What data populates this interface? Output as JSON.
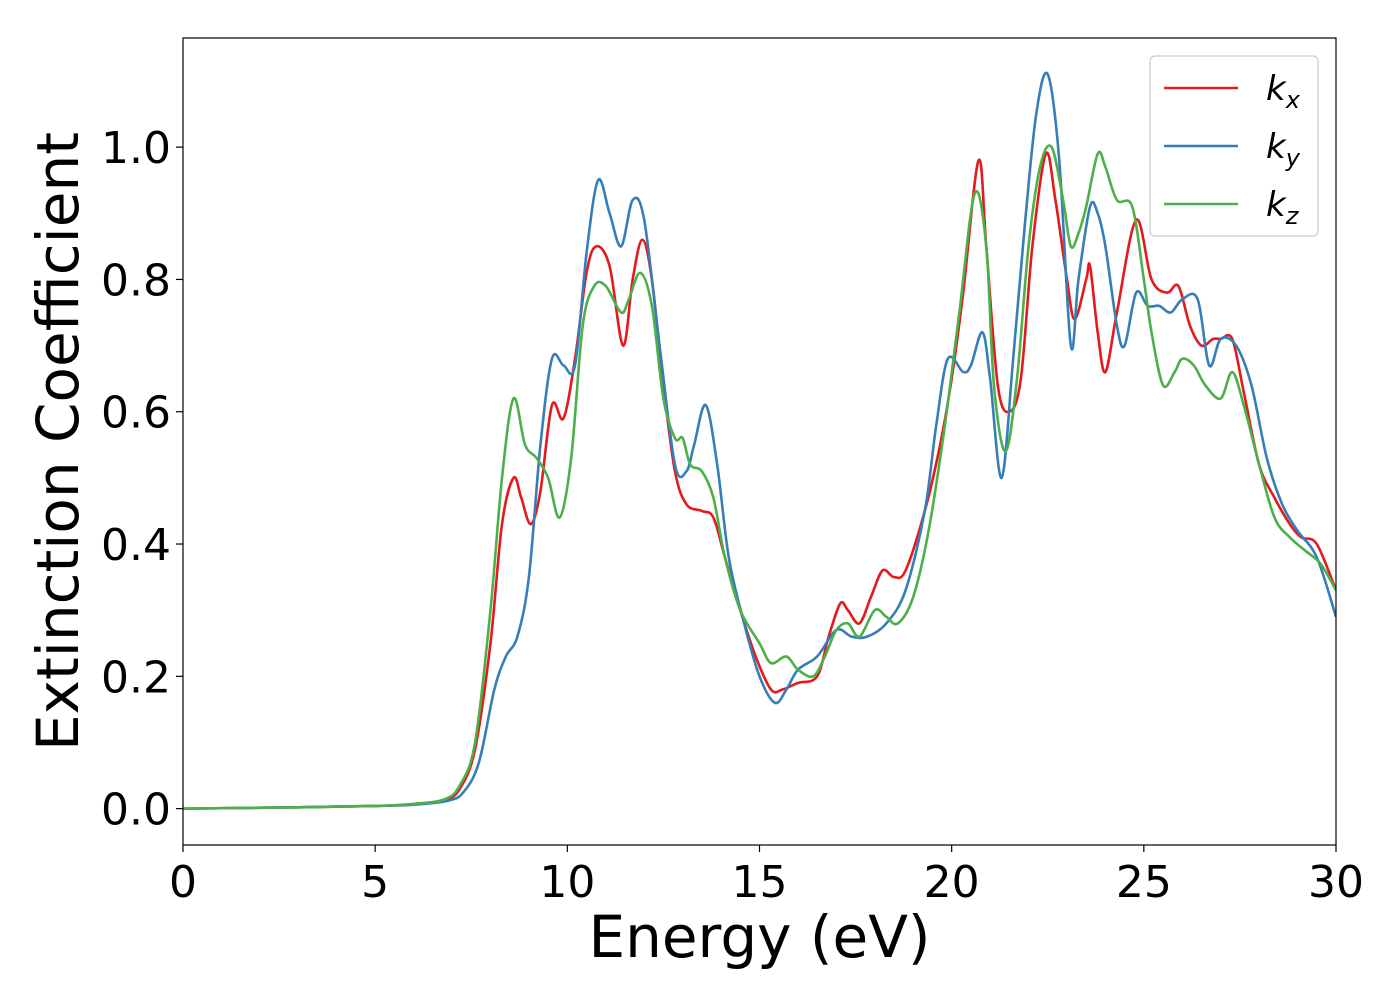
{
  "chart_data": {
    "type": "line",
    "xlabel": "Energy (eV)",
    "ylabel": "Extinction Coefficient",
    "xlim": [
      0,
      30
    ],
    "ylim": [
      -0.055,
      1.165
    ],
    "xticks": [
      0,
      5,
      10,
      15,
      20,
      25,
      30
    ],
    "xtick_labels": [
      "0",
      "5",
      "10",
      "15",
      "20",
      "25",
      "30"
    ],
    "yticks": [
      0.0,
      0.2,
      0.4,
      0.6,
      0.8,
      1.0
    ],
    "ytick_labels": [
      "0.0",
      "0.2",
      "0.4",
      "0.6",
      "0.8",
      "1.0"
    ],
    "grid": false,
    "legend_position": "top-right",
    "series": [
      {
        "label_base": "k",
        "label_sub": "x",
        "color": "#e41a1c",
        "points": [
          [
            0,
            0.0
          ],
          [
            3,
            0.002
          ],
          [
            5,
            0.004
          ],
          [
            6,
            0.007
          ],
          [
            6.8,
            0.013
          ],
          [
            7.2,
            0.03
          ],
          [
            7.6,
            0.09
          ],
          [
            8.0,
            0.25
          ],
          [
            8.3,
            0.43
          ],
          [
            8.6,
            0.5
          ],
          [
            8.8,
            0.47
          ],
          [
            9.05,
            0.43
          ],
          [
            9.3,
            0.48
          ],
          [
            9.6,
            0.61
          ],
          [
            9.9,
            0.59
          ],
          [
            10.2,
            0.68
          ],
          [
            10.5,
            0.81
          ],
          [
            10.75,
            0.85
          ],
          [
            11.1,
            0.82
          ],
          [
            11.45,
            0.7
          ],
          [
            11.7,
            0.8
          ],
          [
            11.95,
            0.86
          ],
          [
            12.2,
            0.8
          ],
          [
            12.5,
            0.64
          ],
          [
            12.8,
            0.51
          ],
          [
            13.1,
            0.46
          ],
          [
            13.5,
            0.45
          ],
          [
            13.8,
            0.44
          ],
          [
            14.1,
            0.38
          ],
          [
            14.5,
            0.3
          ],
          [
            14.9,
            0.23
          ],
          [
            15.3,
            0.18
          ],
          [
            15.6,
            0.18
          ],
          [
            16.0,
            0.19
          ],
          [
            16.5,
            0.2
          ],
          [
            16.8,
            0.26
          ],
          [
            17.1,
            0.31
          ],
          [
            17.3,
            0.3
          ],
          [
            17.6,
            0.28
          ],
          [
            17.9,
            0.32
          ],
          [
            18.2,
            0.36
          ],
          [
            18.5,
            0.35
          ],
          [
            18.8,
            0.36
          ],
          [
            19.3,
            0.45
          ],
          [
            19.7,
            0.55
          ],
          [
            20.0,
            0.65
          ],
          [
            20.3,
            0.78
          ],
          [
            20.7,
            0.98
          ],
          [
            20.9,
            0.85
          ],
          [
            21.2,
            0.64
          ],
          [
            21.5,
            0.6
          ],
          [
            21.8,
            0.65
          ],
          [
            22.1,
            0.85
          ],
          [
            22.45,
            0.99
          ],
          [
            22.7,
            0.92
          ],
          [
            23.0,
            0.8
          ],
          [
            23.2,
            0.74
          ],
          [
            23.5,
            0.8
          ],
          [
            23.6,
            0.82
          ],
          [
            23.8,
            0.72
          ],
          [
            24.0,
            0.66
          ],
          [
            24.3,
            0.75
          ],
          [
            24.8,
            0.89
          ],
          [
            25.2,
            0.8
          ],
          [
            25.6,
            0.78
          ],
          [
            25.9,
            0.79
          ],
          [
            26.2,
            0.73
          ],
          [
            26.5,
            0.7
          ],
          [
            26.8,
            0.71
          ],
          [
            27.0,
            0.71
          ],
          [
            27.3,
            0.71
          ],
          [
            27.6,
            0.63
          ],
          [
            28.0,
            0.52
          ],
          [
            28.4,
            0.47
          ],
          [
            28.8,
            0.43
          ],
          [
            29.1,
            0.41
          ],
          [
            29.5,
            0.4
          ],
          [
            30.0,
            0.33
          ]
        ]
      },
      {
        "label_base": "k",
        "label_sub": "y",
        "color": "#377eb8",
        "points": [
          [
            0,
            0.0
          ],
          [
            3,
            0.002
          ],
          [
            5,
            0.004
          ],
          [
            6,
            0.006
          ],
          [
            6.9,
            0.012
          ],
          [
            7.3,
            0.025
          ],
          [
            7.7,
            0.07
          ],
          [
            8.1,
            0.18
          ],
          [
            8.4,
            0.23
          ],
          [
            8.7,
            0.26
          ],
          [
            9.0,
            0.35
          ],
          [
            9.3,
            0.55
          ],
          [
            9.6,
            0.68
          ],
          [
            9.9,
            0.67
          ],
          [
            10.2,
            0.67
          ],
          [
            10.5,
            0.84
          ],
          [
            10.8,
            0.95
          ],
          [
            11.1,
            0.9
          ],
          [
            11.4,
            0.85
          ],
          [
            11.7,
            0.92
          ],
          [
            12.0,
            0.89
          ],
          [
            12.4,
            0.7
          ],
          [
            12.8,
            0.52
          ],
          [
            13.1,
            0.51
          ],
          [
            13.3,
            0.55
          ],
          [
            13.6,
            0.61
          ],
          [
            13.9,
            0.52
          ],
          [
            14.2,
            0.38
          ],
          [
            14.6,
            0.28
          ],
          [
            15.0,
            0.2
          ],
          [
            15.4,
            0.16
          ],
          [
            15.7,
            0.18
          ],
          [
            16.0,
            0.21
          ],
          [
            16.5,
            0.23
          ],
          [
            17.0,
            0.27
          ],
          [
            17.4,
            0.26
          ],
          [
            17.8,
            0.26
          ],
          [
            18.3,
            0.28
          ],
          [
            18.8,
            0.33
          ],
          [
            19.3,
            0.45
          ],
          [
            19.6,
            0.58
          ],
          [
            19.9,
            0.68
          ],
          [
            20.3,
            0.66
          ],
          [
            20.5,
            0.67
          ],
          [
            20.8,
            0.72
          ],
          [
            21.0,
            0.65
          ],
          [
            21.3,
            0.5
          ],
          [
            21.6,
            0.68
          ],
          [
            21.9,
            0.88
          ],
          [
            22.2,
            1.05
          ],
          [
            22.5,
            1.11
          ],
          [
            22.8,
            0.98
          ],
          [
            23.1,
            0.7
          ],
          [
            23.3,
            0.8
          ],
          [
            23.6,
            0.91
          ],
          [
            23.8,
            0.9
          ],
          [
            24.0,
            0.85
          ],
          [
            24.3,
            0.73
          ],
          [
            24.5,
            0.7
          ],
          [
            24.8,
            0.78
          ],
          [
            25.1,
            0.76
          ],
          [
            25.4,
            0.76
          ],
          [
            25.7,
            0.75
          ],
          [
            26.0,
            0.77
          ],
          [
            26.4,
            0.77
          ],
          [
            26.7,
            0.67
          ],
          [
            27.0,
            0.71
          ],
          [
            27.4,
            0.7
          ],
          [
            27.8,
            0.64
          ],
          [
            28.2,
            0.53
          ],
          [
            28.6,
            0.46
          ],
          [
            29.0,
            0.42
          ],
          [
            29.5,
            0.38
          ],
          [
            30.0,
            0.29
          ]
        ]
      },
      {
        "label_base": "k",
        "label_sub": "z",
        "color": "#4daf4a",
        "points": [
          [
            0,
            0.0
          ],
          [
            3,
            0.002
          ],
          [
            5,
            0.004
          ],
          [
            6,
            0.007
          ],
          [
            6.8,
            0.014
          ],
          [
            7.2,
            0.035
          ],
          [
            7.6,
            0.1
          ],
          [
            8.0,
            0.3
          ],
          [
            8.3,
            0.5
          ],
          [
            8.6,
            0.62
          ],
          [
            8.9,
            0.55
          ],
          [
            9.2,
            0.53
          ],
          [
            9.5,
            0.5
          ],
          [
            9.8,
            0.44
          ],
          [
            10.1,
            0.53
          ],
          [
            10.4,
            0.73
          ],
          [
            10.7,
            0.79
          ],
          [
            11.0,
            0.79
          ],
          [
            11.4,
            0.75
          ],
          [
            11.6,
            0.77
          ],
          [
            11.9,
            0.81
          ],
          [
            12.2,
            0.76
          ],
          [
            12.5,
            0.62
          ],
          [
            12.8,
            0.56
          ],
          [
            13.0,
            0.56
          ],
          [
            13.2,
            0.52
          ],
          [
            13.5,
            0.51
          ],
          [
            13.8,
            0.47
          ],
          [
            14.1,
            0.38
          ],
          [
            14.5,
            0.3
          ],
          [
            15.0,
            0.25
          ],
          [
            15.3,
            0.22
          ],
          [
            15.7,
            0.23
          ],
          [
            16.0,
            0.21
          ],
          [
            16.4,
            0.2
          ],
          [
            16.7,
            0.23
          ],
          [
            17.0,
            0.27
          ],
          [
            17.3,
            0.28
          ],
          [
            17.6,
            0.26
          ],
          [
            18.0,
            0.3
          ],
          [
            18.3,
            0.29
          ],
          [
            18.6,
            0.28
          ],
          [
            19.0,
            0.32
          ],
          [
            19.4,
            0.42
          ],
          [
            19.8,
            0.57
          ],
          [
            20.2,
            0.75
          ],
          [
            20.6,
            0.93
          ],
          [
            20.9,
            0.85
          ],
          [
            21.1,
            0.64
          ],
          [
            21.4,
            0.54
          ],
          [
            21.7,
            0.65
          ],
          [
            22.0,
            0.85
          ],
          [
            22.3,
            0.97
          ],
          [
            22.6,
            1.0
          ],
          [
            22.9,
            0.92
          ],
          [
            23.1,
            0.85
          ],
          [
            23.3,
            0.87
          ],
          [
            23.5,
            0.91
          ],
          [
            23.8,
            0.99
          ],
          [
            24.0,
            0.97
          ],
          [
            24.3,
            0.92
          ],
          [
            24.7,
            0.91
          ],
          [
            25.0,
            0.8
          ],
          [
            25.2,
            0.72
          ],
          [
            25.5,
            0.64
          ],
          [
            25.8,
            0.66
          ],
          [
            26.0,
            0.68
          ],
          [
            26.3,
            0.67
          ],
          [
            26.6,
            0.64
          ],
          [
            27.0,
            0.62
          ],
          [
            27.3,
            0.66
          ],
          [
            27.6,
            0.61
          ],
          [
            28.0,
            0.52
          ],
          [
            28.4,
            0.44
          ],
          [
            28.8,
            0.41
          ],
          [
            29.2,
            0.39
          ],
          [
            29.6,
            0.37
          ],
          [
            30.0,
            0.33
          ]
        ]
      }
    ]
  }
}
